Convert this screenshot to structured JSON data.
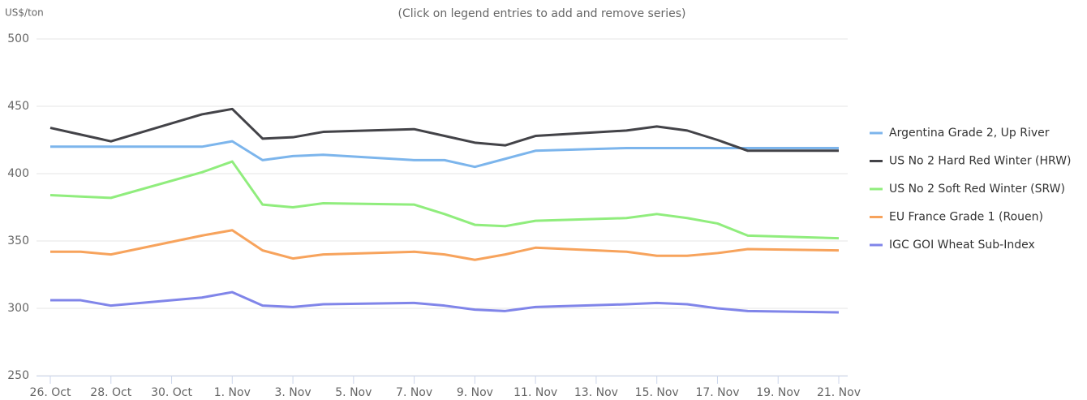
{
  "chart_data": {
    "type": "line",
    "subtitle": "(Click on legend entries to add and remove series)",
    "y_axis_label": "US$/ton",
    "x": [
      "10-26",
      "10-27",
      "10-28",
      "10-31",
      "11-01",
      "11-02",
      "11-03",
      "11-04",
      "11-07",
      "11-08",
      "11-09",
      "11-10",
      "11-11",
      "11-14",
      "11-15",
      "11-16",
      "11-17",
      "11-18",
      "11-21"
    ],
    "xlim": [
      "10-26",
      "11-21"
    ],
    "xticks": [
      {
        "value": "10-26",
        "label": "26. Oct"
      },
      {
        "value": "10-28",
        "label": "28. Oct"
      },
      {
        "value": "10-30",
        "label": "30. Oct"
      },
      {
        "value": "11-01",
        "label": "1. Nov"
      },
      {
        "value": "11-03",
        "label": "3. Nov"
      },
      {
        "value": "11-05",
        "label": "5. Nov"
      },
      {
        "value": "11-07",
        "label": "7. Nov"
      },
      {
        "value": "11-09",
        "label": "9. Nov"
      },
      {
        "value": "11-11",
        "label": "11. Nov"
      },
      {
        "value": "11-13",
        "label": "13. Nov"
      },
      {
        "value": "11-15",
        "label": "15. Nov"
      },
      {
        "value": "11-17",
        "label": "17. Nov"
      },
      {
        "value": "11-19",
        "label": "19. Nov"
      },
      {
        "value": "11-21",
        "label": "21. Nov"
      }
    ],
    "ylim": [
      250,
      500
    ],
    "yticks": [
      250,
      300,
      350,
      400,
      450,
      500
    ],
    "grid": true,
    "legend": "right",
    "series": [
      {
        "name": "Argentina Grade 2, Up River",
        "color": "#7cb5ec",
        "values": [
          420,
          420,
          420,
          420,
          424,
          410,
          413,
          414,
          410,
          410,
          405,
          411,
          417,
          419,
          419,
          419,
          419,
          419,
          419
        ]
      },
      {
        "name": "US No 2 Hard Red Winter (HRW)",
        "color": "#434348",
        "values": [
          434,
          429,
          424,
          444,
          448,
          426,
          427,
          431,
          433,
          428,
          423,
          421,
          428,
          432,
          435,
          432,
          425,
          417,
          417
        ]
      },
      {
        "name": "US No 2 Soft Red Winter (SRW)",
        "color": "#90ed7d",
        "values": [
          384,
          383,
          382,
          401,
          409,
          377,
          375,
          378,
          377,
          370,
          362,
          361,
          365,
          367,
          370,
          367,
          363,
          354,
          352
        ]
      },
      {
        "name": "EU France Grade 1 (Rouen)",
        "color": "#f7a35c",
        "values": [
          342,
          342,
          340,
          354,
          358,
          343,
          337,
          340,
          342,
          340,
          336,
          340,
          345,
          342,
          339,
          339,
          341,
          344,
          343
        ]
      },
      {
        "name": "IGC GOI Wheat Sub-Index",
        "color": "#8085e9",
        "values": [
          306,
          306,
          302,
          308,
          312,
          302,
          301,
          303,
          304,
          302,
          299,
          298,
          301,
          303,
          304,
          303,
          300,
          298,
          297
        ]
      }
    ]
  }
}
